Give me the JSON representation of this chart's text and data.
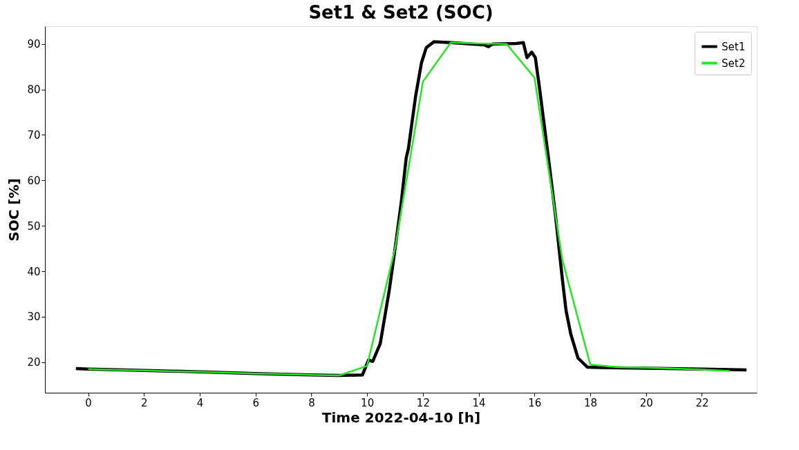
{
  "chart_data": {
    "type": "line",
    "title": "Set1 & Set2 (SOC)",
    "xlabel": "Time 2022-04-10 [h]",
    "ylabel": "SOC [%]",
    "xlim": [
      -1.55,
      23.97
    ],
    "ylim": [
      13.3,
      93.9
    ],
    "xticks": [
      0,
      2,
      4,
      6,
      8,
      10,
      12,
      14,
      16,
      18,
      20,
      22
    ],
    "yticks": [
      20,
      30,
      40,
      50,
      60,
      70,
      80,
      90
    ],
    "grid": false,
    "legend": "top right",
    "marker": "none",
    "line_style": "solid",
    "series": [
      {
        "name": "Set1",
        "color": "#000000",
        "x": [
          -0.44,
          0,
          2,
          4,
          6,
          8,
          9,
          9.83,
          10.05,
          10.2,
          10.47,
          10.8,
          10.98,
          11.23,
          11.4,
          11.48,
          11.74,
          11.95,
          12.12,
          12.4,
          13.0,
          14.2,
          14.35,
          14.5,
          15.35,
          15.6,
          15.73,
          15.9,
          16.03,
          16.16,
          16.5,
          16.75,
          17.0,
          17.13,
          17.3,
          17.56,
          17.9,
          18.6,
          20,
          22,
          23.6
        ],
        "values": [
          18.6,
          18.5,
          18.2,
          17.9,
          17.5,
          17.2,
          17.1,
          17.2,
          20.5,
          20.2,
          24.1,
          36.1,
          44,
          55.5,
          64.9,
          67,
          78.6,
          85.9,
          89.2,
          90.5,
          90.3,
          89.8,
          89.4,
          90.0,
          90.1,
          90.3,
          87.0,
          88.2,
          87.0,
          81.2,
          64.9,
          52.4,
          38.2,
          31.4,
          26.2,
          20.9,
          18.9,
          18.8,
          18.7,
          18.5,
          18.3
        ]
      },
      {
        "name": "Set2",
        "color": "#22e822",
        "x": [
          0,
          1,
          2,
          3,
          4,
          5,
          6,
          7,
          8,
          9,
          10,
          11,
          12,
          13,
          14,
          15,
          16,
          17,
          18,
          19,
          20,
          21,
          22,
          23
        ],
        "values": [
          18.5,
          18.3,
          18.2,
          18.0,
          17.9,
          17.7,
          17.5,
          17.4,
          17.2,
          17.1,
          19.2,
          45,
          81.7,
          90.3,
          90.1,
          90.0,
          82.6,
          42.5,
          19.5,
          18.9,
          18.8,
          18.6,
          18.4,
          18.1
        ]
      }
    ]
  }
}
